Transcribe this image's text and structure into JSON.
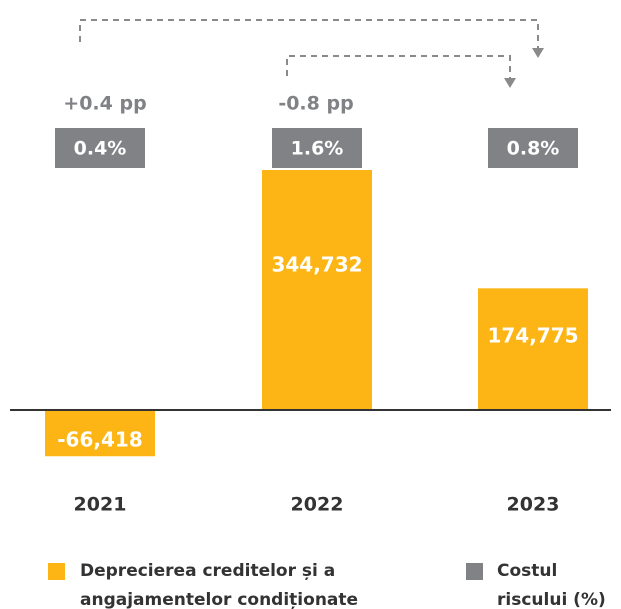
{
  "chart_data": {
    "type": "bar",
    "categories": [
      "2021",
      "2022",
      "2023"
    ],
    "series": [
      {
        "name": "Deprecierea creditelor și a angajamentelor condiționate",
        "color": "#fdb515",
        "values": [
          -66418,
          344732,
          174775
        ],
        "value_labels": [
          "-66,418",
          "344,732",
          "174,775"
        ]
      },
      {
        "name": "Costul riscului (%)",
        "color": "#808285",
        "values": [
          0.4,
          1.6,
          0.8
        ],
        "value_labels": [
          "0.4%",
          "1.6%",
          "0.8%"
        ]
      }
    ],
    "annotations": [
      "+0.4 pp",
      "-0.8 pp"
    ]
  }
}
